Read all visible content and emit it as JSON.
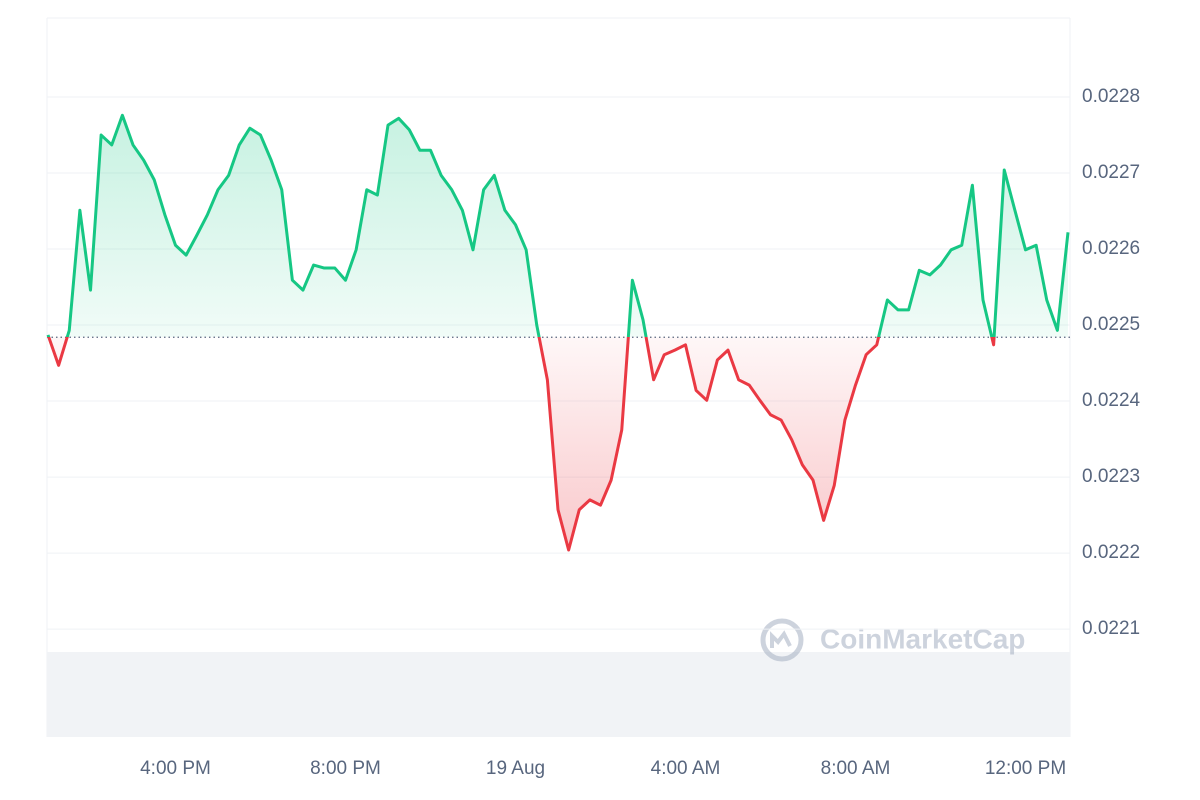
{
  "chart_data": {
    "type": "line",
    "categories": [
      null,
      null,
      null,
      null,
      null,
      null,
      null,
      null,
      null,
      null,
      null,
      null,
      "4:00 PM",
      null,
      null,
      null,
      null,
      null,
      null,
      null,
      null,
      null,
      null,
      null,
      null,
      null,
      null,
      null,
      "8:00 PM",
      null,
      null,
      null,
      null,
      null,
      null,
      null,
      null,
      null,
      null,
      null,
      null,
      null,
      null,
      null,
      "19 Aug",
      null,
      null,
      null,
      null,
      null,
      null,
      null,
      null,
      null,
      null,
      null,
      null,
      null,
      null,
      null,
      "4:00 AM",
      null,
      null,
      null,
      null,
      null,
      null,
      null,
      null,
      null,
      null,
      null,
      null,
      null,
      null,
      null,
      "8:00 AM",
      null,
      null,
      null,
      null,
      null,
      null,
      null,
      null,
      null,
      null,
      null,
      null,
      null,
      null,
      null,
      "12:00 PM",
      null,
      null,
      null,
      null
    ],
    "values": [
      0.022487,
      0.022447,
      0.022493,
      0.022651,
      0.022546,
      0.02275,
      0.022737,
      0.022776,
      0.022737,
      0.022717,
      0.022691,
      0.022645,
      0.022605,
      0.022592,
      0.022618,
      0.022645,
      0.022678,
      0.022697,
      0.022737,
      0.022759,
      0.02275,
      0.022717,
      0.022678,
      0.022559,
      0.022546,
      0.022579,
      0.022575,
      0.022575,
      0.022559,
      0.022599,
      0.022678,
      0.022671,
      0.022763,
      0.022772,
      0.022757,
      0.02273,
      0.02273,
      0.022697,
      0.022678,
      0.022651,
      0.022599,
      0.022678,
      0.022697,
      0.022651,
      0.022632,
      0.022599,
      0.0225,
      0.022428,
      0.022257,
      0.022204,
      0.022257,
      0.02227,
      0.022263,
      0.022296,
      0.022362,
      0.022559,
      0.022507,
      0.022428,
      0.022461,
      0.022467,
      0.022474,
      0.022414,
      0.022401,
      0.022454,
      0.022467,
      0.022428,
      0.022421,
      0.022401,
      0.022382,
      0.022375,
      0.022349,
      0.022316,
      0.022296,
      0.022243,
      0.022289,
      0.022375,
      0.022421,
      0.022461,
      0.022474,
      0.022533,
      0.02252,
      0.02252,
      0.022572,
      0.022566,
      0.022579,
      0.022599,
      0.022605,
      0.022684,
      0.022533,
      0.022474,
      0.022704,
      0.022651,
      0.022599,
      0.022605,
      0.022533,
      0.022493,
      0.022622
    ],
    "baseline": 0.022484,
    "colors": {
      "above": "#16c784",
      "below": "#ea3943"
    },
    "ylim": [
      0.021958,
      0.022904
    ],
    "yticks": [
      0.0221,
      0.0222,
      0.0223,
      0.0224,
      0.0225,
      0.0226,
      0.0227,
      0.0228
    ],
    "grid": true,
    "watermark": "CoinMarketCap"
  }
}
